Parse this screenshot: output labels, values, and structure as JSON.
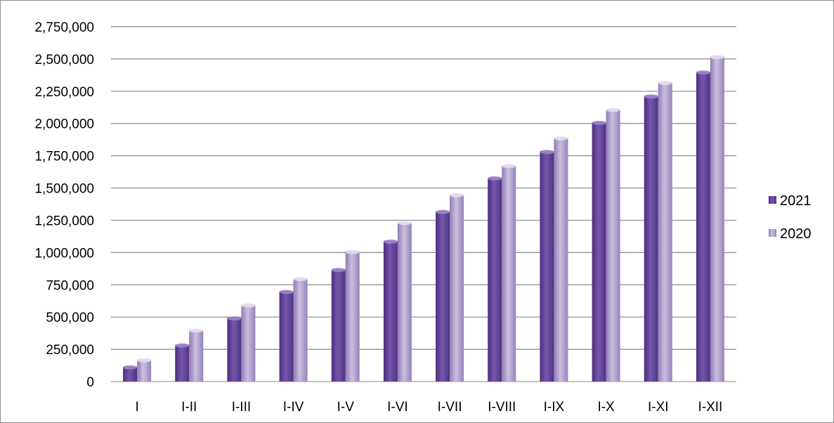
{
  "chart_data": {
    "type": "bar",
    "categories": [
      "I",
      "I-II",
      "I-III",
      "I-IV",
      "I-V",
      "I-VI",
      "I-VII",
      "I-VIII",
      "I-IX",
      "I-X",
      "I-XI",
      "I-XII"
    ],
    "series": [
      {
        "name": "2021",
        "color": "#6a4a9e",
        "values": [
          115000,
          285000,
          495000,
          700000,
          870000,
          1090000,
          1320000,
          1580000,
          1785000,
          2010000,
          2215000,
          2400000
        ]
      },
      {
        "name": "2020",
        "color": "#b3a2cf",
        "values": [
          170000,
          400000,
          595000,
          800000,
          1010000,
          1235000,
          1450000,
          1675000,
          1890000,
          2110000,
          2320000,
          2520000
        ]
      }
    ],
    "y_ticks": [
      "0",
      "250,000",
      "500,000",
      "750,000",
      "1,000,000",
      "1,250,000",
      "1,500,000",
      "1,750,000",
      "2,000,000",
      "2,250,000",
      "2,500,000",
      "2,750,000"
    ],
    "ylim": [
      0,
      2750000
    ],
    "grid": true,
    "legend_position": "right"
  }
}
